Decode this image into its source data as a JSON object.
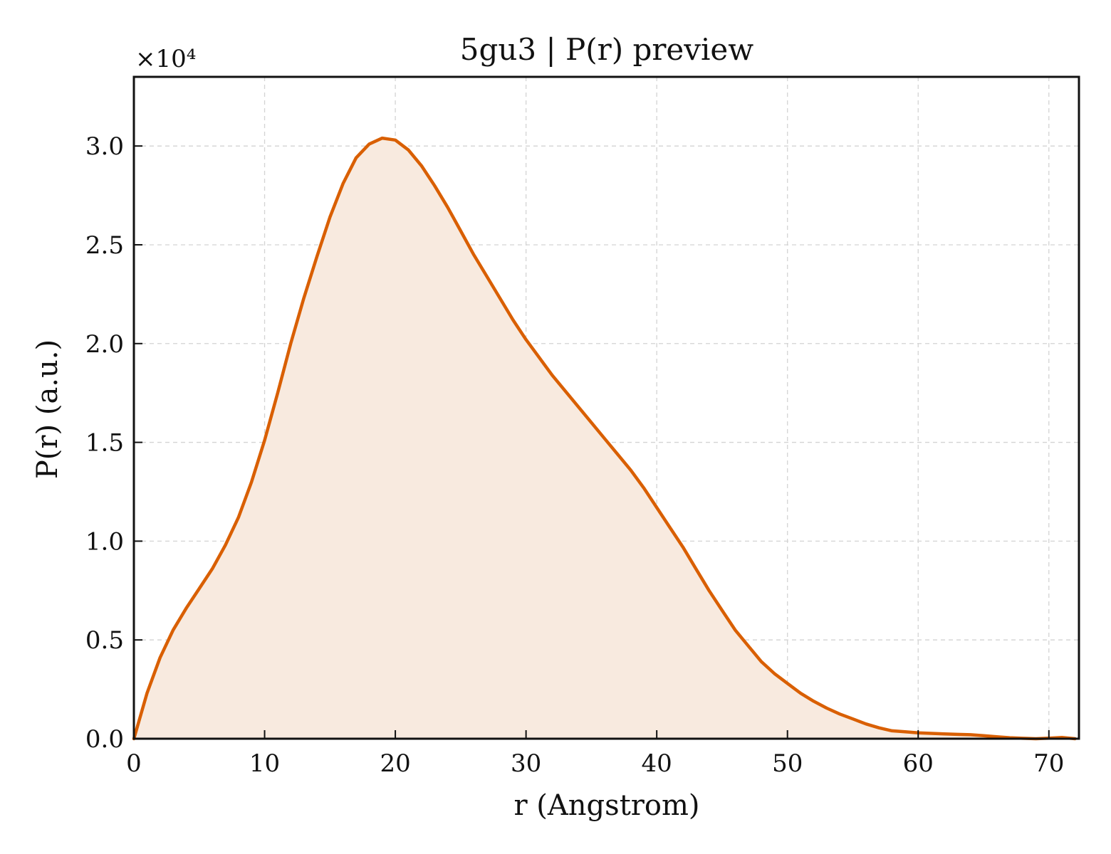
{
  "chart_data": {
    "type": "area",
    "title": "5gu3 | P(r) preview",
    "xlabel": "r (Angstrom)",
    "ylabel": "P(r) (a.u.)",
    "y_multiplier": "×10⁴",
    "xlim": [
      0,
      72.3
    ],
    "ylim": [
      0,
      3.35
    ],
    "x_ticks": [
      0,
      10,
      20,
      30,
      40,
      50,
      60,
      70
    ],
    "x_tick_labels": [
      "0",
      "10",
      "20",
      "30",
      "40",
      "50",
      "60",
      "70"
    ],
    "y_ticks": [
      0,
      0.5,
      1.0,
      1.5,
      2.0,
      2.5,
      3.0
    ],
    "y_tick_labels": [
      "0.0",
      "0.5",
      "1.0",
      "1.5",
      "2.0",
      "2.5",
      "3.0"
    ],
    "grid": true,
    "line_color": "#d95f02",
    "fill_color": "#f8eadf",
    "series": [
      {
        "x": [
          0,
          1,
          2,
          3,
          4,
          5,
          6,
          7,
          8,
          9,
          10,
          11,
          12,
          13,
          14,
          15,
          16,
          17,
          18,
          19,
          20,
          21,
          22,
          23,
          24,
          25,
          26,
          27,
          28,
          29,
          30,
          31,
          32,
          33,
          34,
          35,
          36,
          37,
          38,
          39,
          40,
          41,
          42,
          43,
          44,
          45,
          46,
          47,
          48,
          49,
          50,
          51,
          52,
          53,
          54,
          55,
          56,
          57,
          58,
          59,
          60,
          61,
          62,
          63,
          64,
          65,
          66,
          67,
          68,
          69,
          70,
          71,
          72
        ],
        "y": [
          0.0,
          0.23,
          0.41,
          0.55,
          0.66,
          0.76,
          0.86,
          0.98,
          1.12,
          1.3,
          1.51,
          1.75,
          2.0,
          2.23,
          2.44,
          2.64,
          2.81,
          2.94,
          3.01,
          3.04,
          3.03,
          2.98,
          2.9,
          2.8,
          2.69,
          2.57,
          2.45,
          2.34,
          2.23,
          2.12,
          2.02,
          1.93,
          1.84,
          1.76,
          1.68,
          1.6,
          1.52,
          1.44,
          1.36,
          1.27,
          1.17,
          1.07,
          0.97,
          0.86,
          0.75,
          0.65,
          0.55,
          0.47,
          0.39,
          0.33,
          0.28,
          0.23,
          0.19,
          0.155,
          0.125,
          0.1,
          0.075,
          0.055,
          0.04,
          0.035,
          0.03,
          0.027,
          0.024,
          0.022,
          0.02,
          0.015,
          0.01,
          0.005,
          0.002,
          0.0,
          0.003,
          0.006,
          0.0
        ]
      }
    ]
  }
}
